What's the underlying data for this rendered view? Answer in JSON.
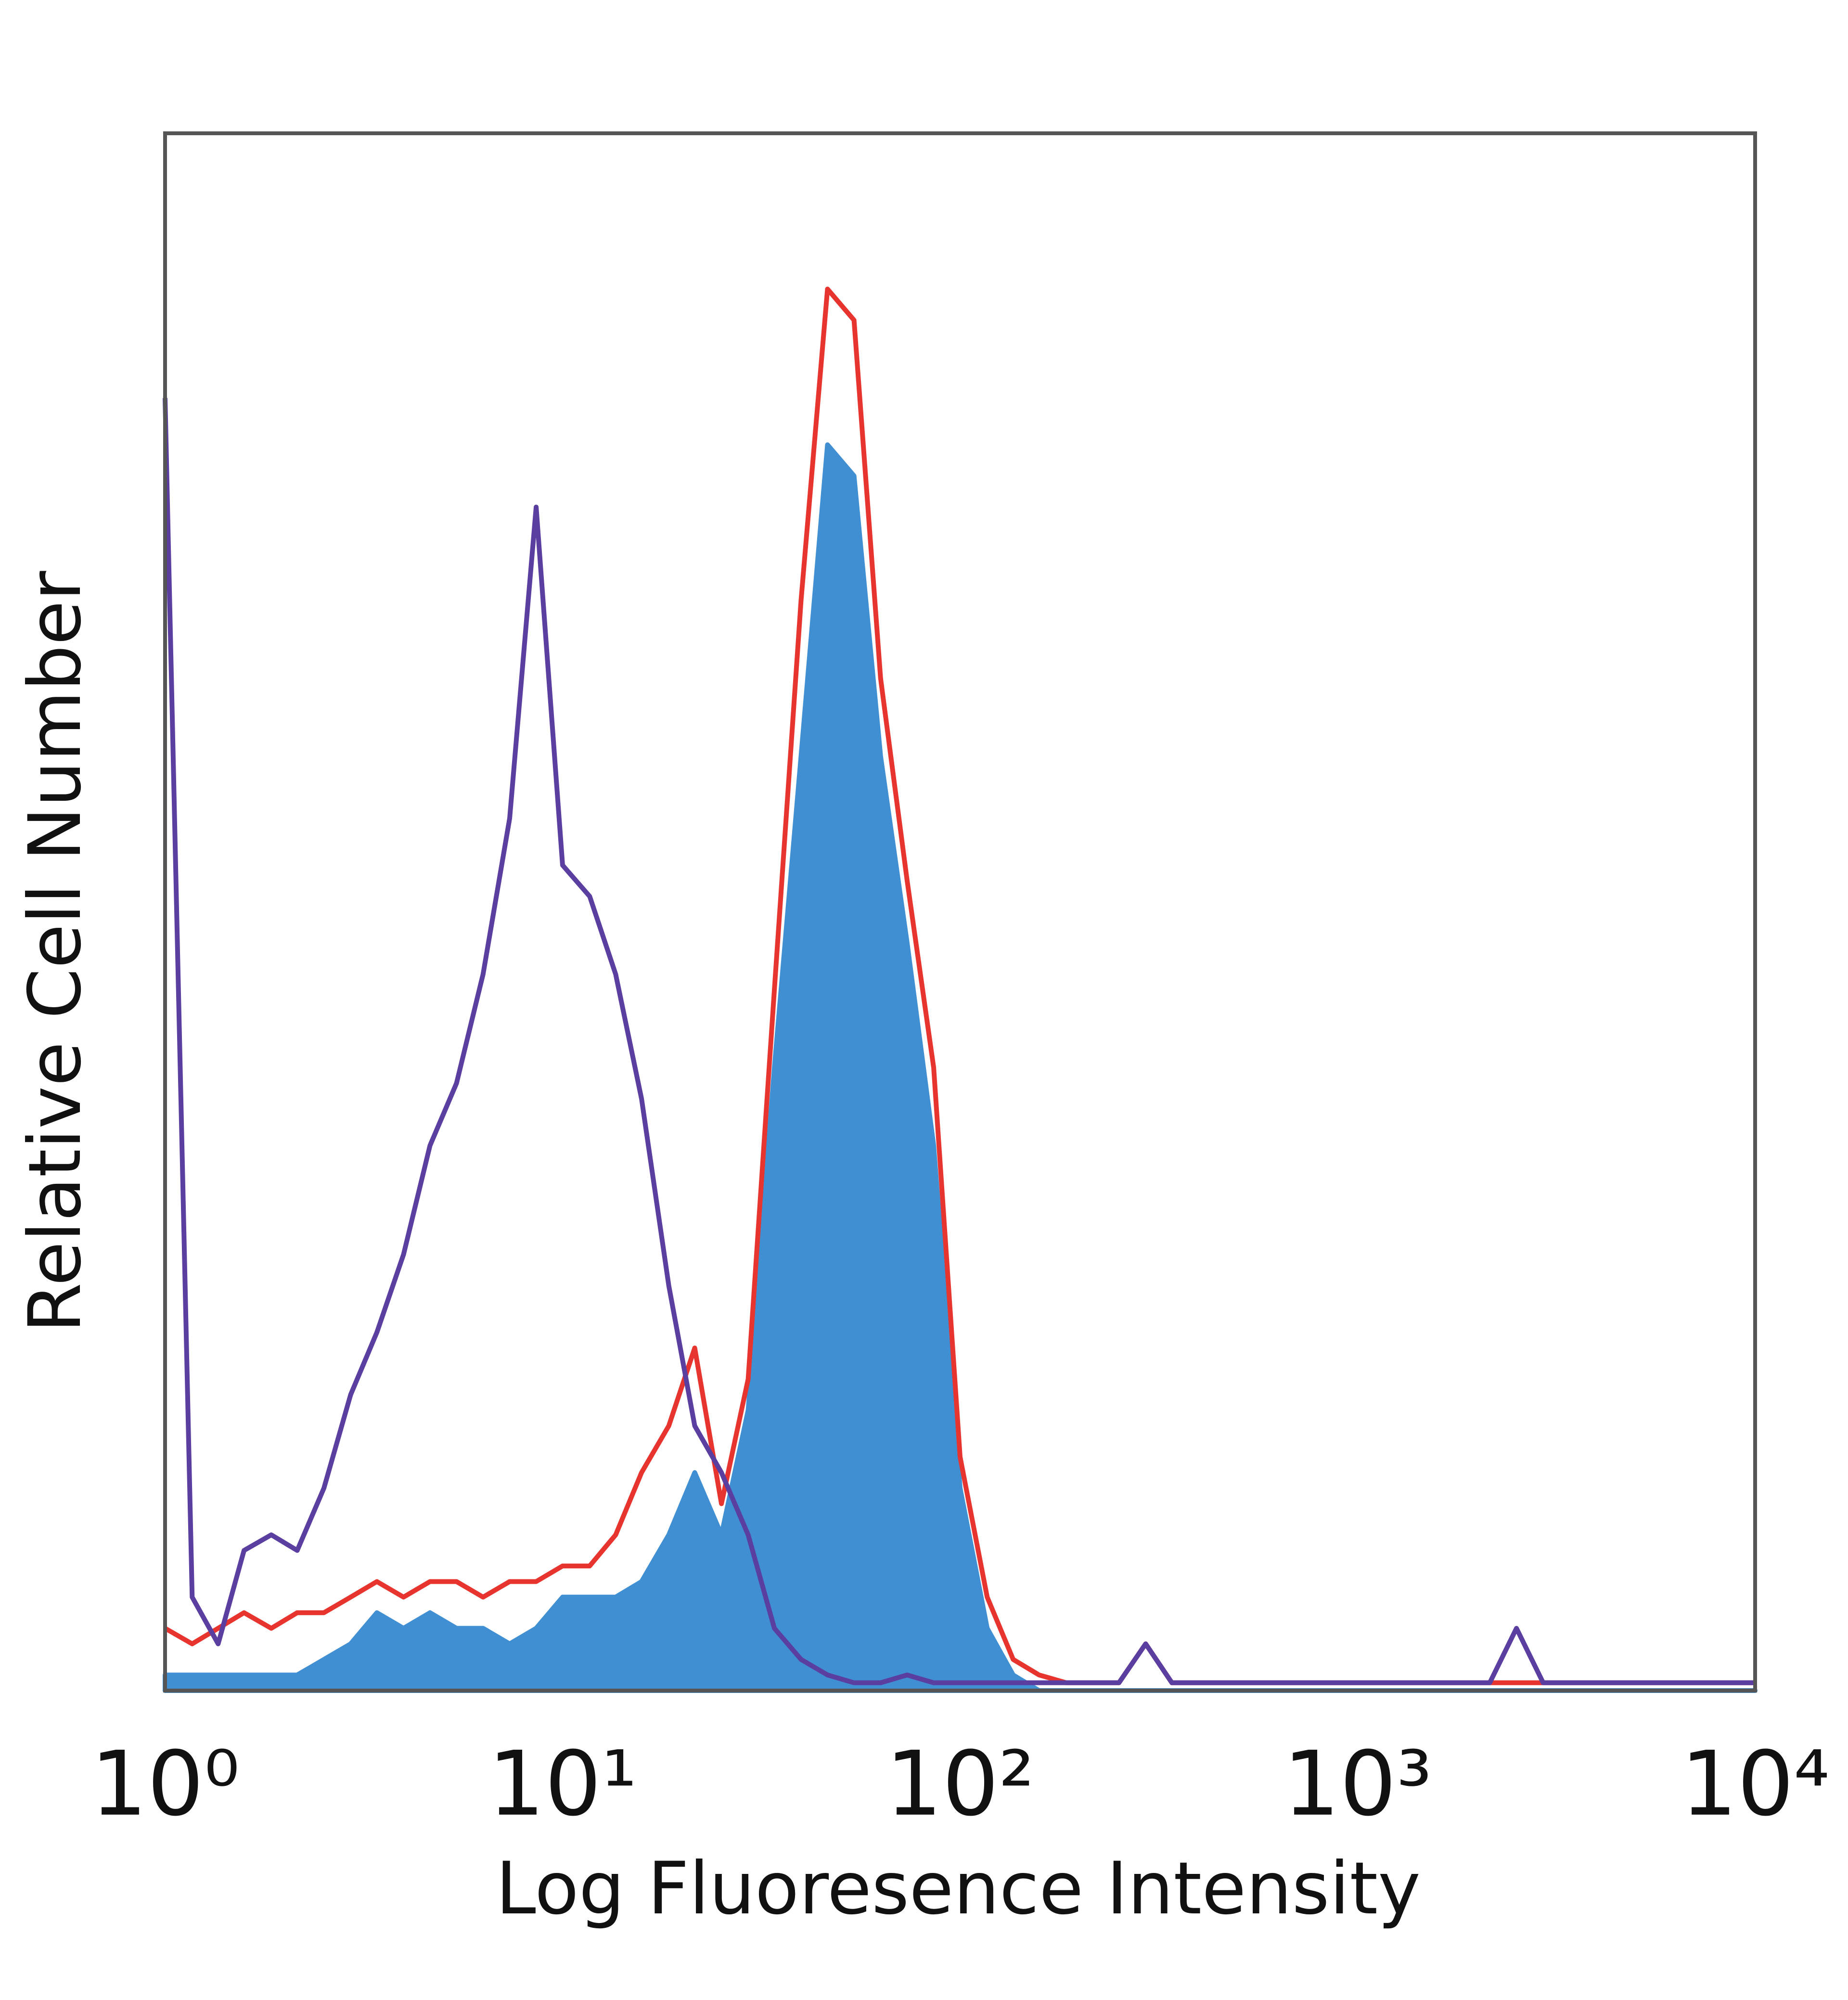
{
  "chart_data": {
    "type": "histogram",
    "x_label": "Log Fluoresence Intensity",
    "y_label": "Relative Cell Number",
    "xscale": "log",
    "grid": false,
    "x": [
      1,
      1.17,
      1.36,
      1.58,
      1.85,
      2.15,
      2.51,
      2.93,
      3.41,
      3.98,
      4.64,
      5.41,
      6.31,
      7.36,
      8.58,
      10,
      11.7,
      13.6,
      15.8,
      18.5,
      21.5,
      25.1,
      29.3,
      34.1,
      39.8,
      46.4,
      54.1,
      63.1,
      73.6,
      85.8,
      100,
      117,
      136,
      158,
      185,
      215,
      251,
      293,
      341,
      398,
      464,
      541,
      631,
      736,
      858,
      1000,
      1170,
      1360,
      1580,
      1850,
      2150,
      2510,
      2930,
      3410,
      3980,
      4640,
      5410,
      6310,
      7360,
      8580,
      10000
    ],
    "xlim": [
      1,
      10000
    ],
    "xticks": [
      {
        "value": 1,
        "label": "10⁰"
      },
      {
        "value": 10,
        "label": "10¹"
      },
      {
        "value": 100,
        "label": "10²"
      },
      {
        "value": 1000,
        "label": "10³"
      },
      {
        "value": 10000,
        "label": "10⁴"
      }
    ],
    "ylim": [
      0,
      100
    ],
    "series": [
      {
        "color": "#3f8fd2",
        "fill": true,
        "values": [
          1,
          1,
          1,
          1,
          1,
          1,
          2,
          3,
          5,
          4,
          5,
          4,
          4,
          3,
          4,
          6,
          6,
          6,
          7,
          10,
          14,
          10,
          18,
          40,
          60,
          80,
          78,
          60,
          48,
          35,
          13,
          4,
          1,
          0,
          0,
          0,
          0,
          0,
          0,
          0,
          0,
          0,
          0,
          0,
          0,
          0,
          0,
          0,
          0,
          0,
          0,
          0,
          0,
          0,
          0,
          0,
          0,
          0,
          0,
          0,
          0
        ]
      },
      {
        "color": "#e8342e",
        "fill": false,
        "values": [
          4,
          3,
          4,
          5,
          4,
          5,
          5,
          6,
          7,
          6,
          7,
          7,
          6,
          7,
          7,
          8,
          8,
          10,
          14,
          17,
          22,
          12,
          20,
          45,
          70,
          90,
          88,
          65,
          52,
          40,
          15,
          6,
          2,
          1,
          0.5,
          0.5,
          0.5,
          3,
          0.5,
          0.5,
          0.5,
          0.5,
          0.5,
          0.5,
          0.5,
          0.5,
          0.5,
          0.5,
          0.5,
          0.5,
          0.5,
          0.5,
          0.5,
          0.5,
          0.5,
          0.5,
          0.5,
          0.5,
          0.5,
          0.5,
          0.5
        ]
      },
      {
        "color": "#5a3ea0",
        "fill": false,
        "values": [
          83,
          6,
          3,
          9,
          10,
          9,
          13,
          19,
          23,
          28,
          35,
          39,
          46,
          56,
          76,
          53,
          51,
          46,
          38,
          26,
          17,
          14,
          10,
          4,
          2,
          1,
          0.5,
          0.5,
          1,
          0.5,
          0.5,
          0.5,
          0.5,
          0.5,
          0.5,
          0.5,
          0.5,
          3,
          0.5,
          0.5,
          0.5,
          0.5,
          0.5,
          0.5,
          0.5,
          0.5,
          0.5,
          0.5,
          0.5,
          0.5,
          0.5,
          4,
          0.5,
          0.5,
          0.5,
          0.5,
          0.5,
          0.5,
          0.5,
          0.5,
          0.5
        ]
      }
    ]
  }
}
